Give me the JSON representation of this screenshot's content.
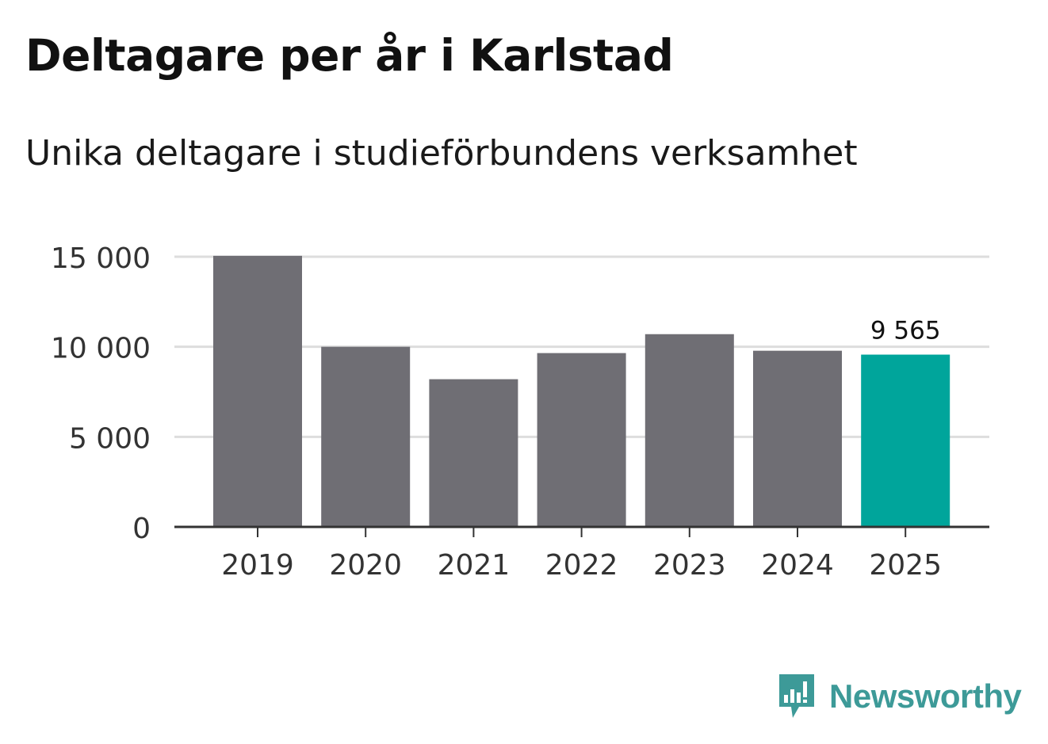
{
  "title": "Deltagare per år i Karlstad",
  "subtitle": "Unika deltagare i studieförbundens verksamhet",
  "brand": "Newsworthy",
  "colors": {
    "bar": "#6f6e74",
    "highlight": "#00a59b",
    "grid": "#dddddd",
    "axis": "#333333",
    "brand": "#3d9a98"
  },
  "chart_data": {
    "type": "bar",
    "title": "Deltagare per år i Karlstad",
    "subtitle": "Unika deltagare i studieförbundens verksamhet",
    "categories": [
      "2019",
      "2020",
      "2021",
      "2022",
      "2023",
      "2024",
      "2025"
    ],
    "values": [
      15050,
      10000,
      8200,
      9650,
      10700,
      9780,
      9565
    ],
    "highlight_index": 6,
    "data_labels": [
      {
        "index": 6,
        "text": "9 565"
      }
    ],
    "ylim": [
      0,
      15000
    ],
    "yticks": [
      0,
      5000,
      10000,
      15000
    ],
    "ytick_labels": [
      "0",
      "5 000",
      "10 000",
      "15 000"
    ],
    "xlabel": "",
    "ylabel": "",
    "grid": true
  }
}
